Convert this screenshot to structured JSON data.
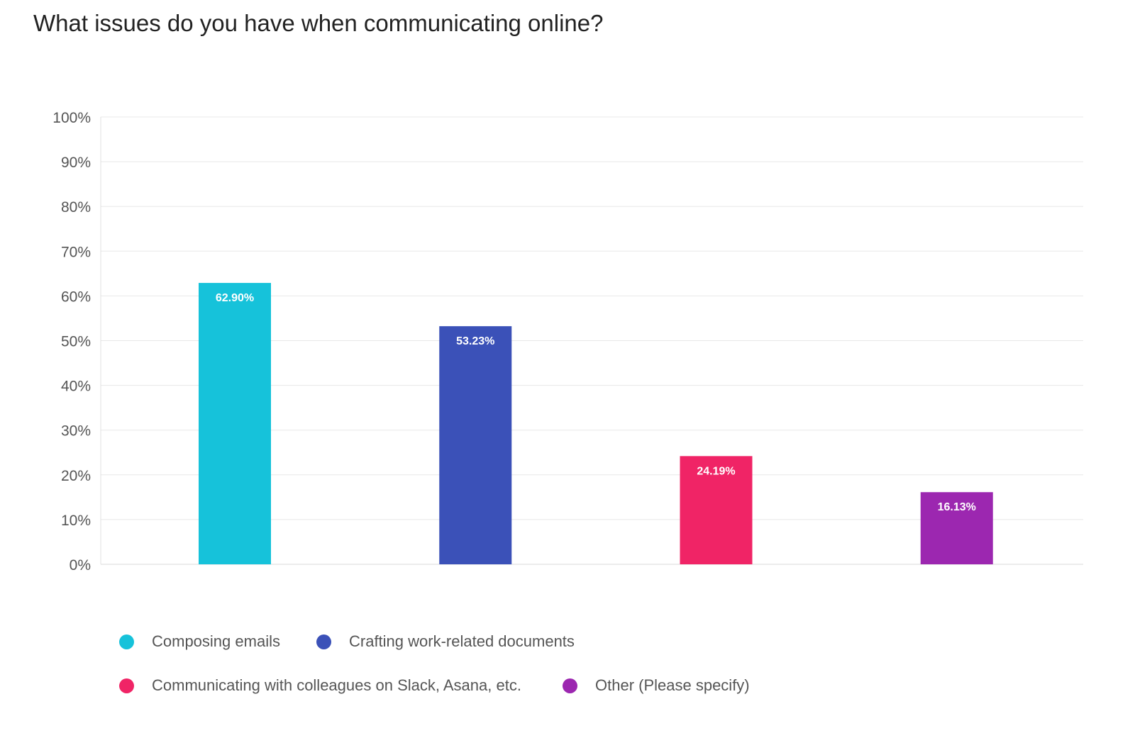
{
  "title": "What issues do you have when communicating online?",
  "chart_data": {
    "type": "bar",
    "categories": [
      "Composing emails",
      "Crafting work-related documents",
      "Communicating with colleagues on Slack, Asana, etc.",
      "Other (Please specify)"
    ],
    "values": [
      62.9,
      53.23,
      24.19,
      16.13
    ],
    "data_labels": [
      "62.90%",
      "53.23%",
      "24.19%",
      "16.13%"
    ],
    "colors": [
      "#16c2da",
      "#3b51b8",
      "#f02466",
      "#9c27b0"
    ],
    "ylim": [
      0,
      100
    ],
    "y_ticks": [
      0,
      10,
      20,
      30,
      40,
      50,
      60,
      70,
      80,
      90,
      100
    ],
    "y_tick_labels": [
      "0%",
      "10%",
      "20%",
      "30%",
      "40%",
      "50%",
      "60%",
      "70%",
      "80%",
      "90%",
      "100%"
    ],
    "grid": true,
    "legend_position": "bottom-left",
    "xlabel": "",
    "ylabel": ""
  },
  "legend": {
    "items": [
      {
        "label": "Composing emails",
        "color": "#16c2da"
      },
      {
        "label": "Crafting work-related documents",
        "color": "#3b51b8"
      },
      {
        "label": "Communicating with colleagues on Slack, Asana, etc.",
        "color": "#f02466"
      },
      {
        "label": "Other (Please specify)",
        "color": "#9c27b0"
      }
    ]
  }
}
